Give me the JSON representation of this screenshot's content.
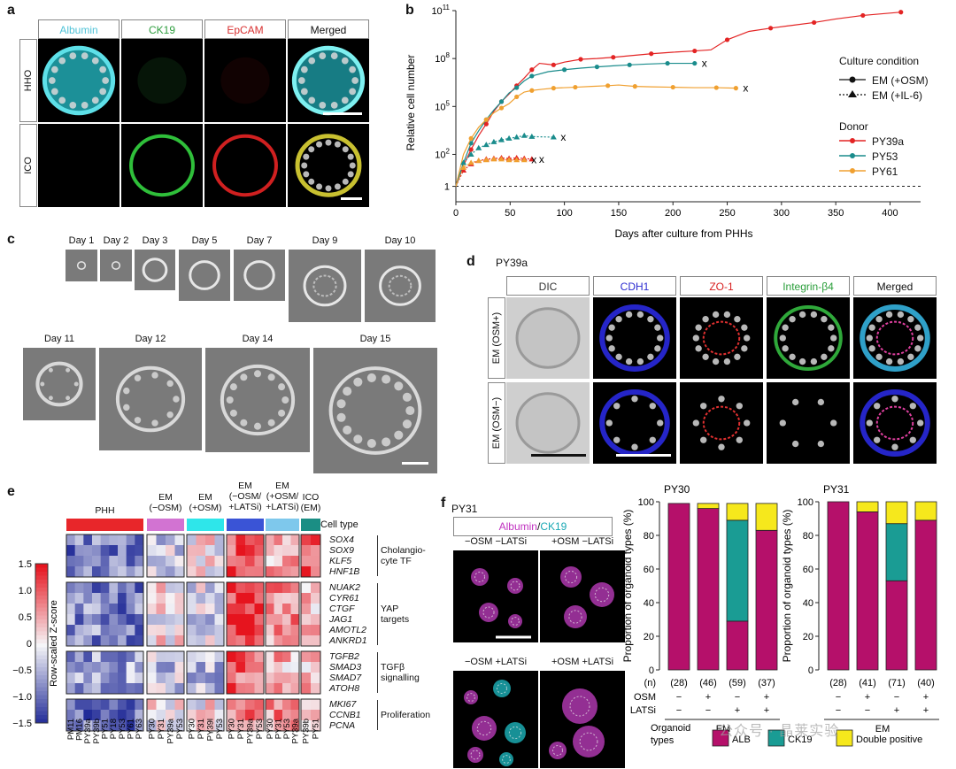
{
  "panels": {
    "a": "a",
    "b": "b",
    "c": "c",
    "d": "d",
    "e": "e",
    "f": "f"
  },
  "panel_a": {
    "columns": [
      "Albumin",
      "CK19",
      "EpCAM",
      "Merged"
    ],
    "column_colors": [
      "#4fc3d8",
      "#2e9e3e",
      "#d83030",
      "#111111"
    ],
    "rows": [
      "HHO",
      "ICO"
    ]
  },
  "panel_b": {
    "ylabel": "Relative cell number",
    "xlabel": "Days after culture from PHHs",
    "legend_condition_title": "Culture condition",
    "legend_conditions": [
      "EM (+OSM)",
      "EM (+IL-6)"
    ],
    "legend_donor_title": "Donor",
    "legend_donors": [
      "PY39a",
      "PY53",
      "PY61"
    ],
    "end_marker": "x"
  },
  "chart_data": {
    "type": "line",
    "title": "",
    "xlabel": "Days after culture from PHHs",
    "ylabel": "Relative cell number",
    "yscale": "log",
    "xlim": [
      0,
      420
    ],
    "ylim": [
      0.3,
      100000000000
    ],
    "xticks": [
      0,
      50,
      100,
      150,
      200,
      250,
      300,
      350,
      400
    ],
    "yticks": [
      {
        "v": 1,
        "label": "1"
      },
      {
        "v": 100,
        "label": "10^2"
      },
      {
        "v": 100000,
        "label": "10^5"
      },
      {
        "v": 100000000,
        "label": "10^8"
      },
      {
        "v": 100000000000,
        "label": "10^11"
      }
    ],
    "series": [
      {
        "name": "PY39a",
        "condition": "EM (+OSM)",
        "color": "#e32424",
        "x": [
          0,
          7,
          14,
          21,
          28,
          35,
          42,
          49,
          56,
          63,
          70,
          77,
          90,
          100,
          115,
          130,
          145,
          160,
          180,
          200,
          220,
          235,
          250,
          270,
          290,
          310,
          330,
          350,
          375,
          410
        ],
        "y": [
          1,
          20,
          200,
          1500,
          8000,
          50000,
          200000,
          600000,
          2000000,
          6000000,
          20000000,
          50000000,
          40000000,
          60000000,
          90000000,
          100000000,
          120000000,
          150000000,
          200000000,
          250000000,
          300000000,
          350000000,
          1500000000,
          5000000000,
          8000000000,
          12000000000,
          18000000000,
          30000000000,
          50000000000,
          80000000000
        ]
      },
      {
        "name": "PY53",
        "condition": "EM (+OSM)",
        "color": "#1a8c8c",
        "x": [
          0,
          7,
          14,
          21,
          28,
          35,
          42,
          49,
          56,
          63,
          70,
          85,
          100,
          115,
          130,
          145,
          160,
          175,
          195,
          220
        ],
        "y": [
          1,
          30,
          500,
          3000,
          15000,
          60000,
          200000,
          700000,
          1500000,
          4000000,
          8000000,
          15000000,
          20000000,
          25000000,
          30000000,
          35000000,
          40000000,
          45000000,
          50000000,
          50000000
        ]
      },
      {
        "name": "PY61",
        "condition": "EM (+OSM)",
        "color": "#f0a030",
        "x": [
          0,
          7,
          14,
          21,
          28,
          35,
          42,
          49,
          56,
          63,
          70,
          80,
          90,
          100,
          110,
          125,
          140,
          150,
          165,
          180,
          200,
          220,
          240,
          258
        ],
        "y": [
          1,
          100,
          1000,
          5000,
          15000,
          40000,
          80000,
          150000,
          400000,
          800000,
          1000000,
          1200000,
          1400000,
          1500000,
          1600000,
          1800000,
          2000000,
          2200000,
          1800000,
          1700000,
          1600000,
          1500000,
          1500000,
          1400000
        ]
      },
      {
        "name": "PY39a",
        "condition": "EM (+IL-6)",
        "color": "#e32424",
        "x": [
          0,
          7,
          14,
          21,
          28,
          35,
          42,
          49,
          56,
          63,
          70
        ],
        "y": [
          1,
          10,
          25,
          40,
          50,
          55,
          60,
          55,
          60,
          55,
          50
        ]
      },
      {
        "name": "PY53",
        "condition": "EM (+IL-6)",
        "color": "#1a8c8c",
        "x": [
          0,
          7,
          14,
          21,
          28,
          35,
          42,
          49,
          56,
          63,
          70,
          90
        ],
        "y": [
          1,
          30,
          100,
          250,
          400,
          600,
          800,
          1000,
          1200,
          1500,
          1300,
          1200
        ]
      },
      {
        "name": "PY61",
        "condition": "EM (+IL-6)",
        "color": "#f0a030",
        "x": [
          0,
          7,
          14,
          21,
          28,
          35,
          42,
          49,
          56,
          63
        ],
        "y": [
          1,
          15,
          30,
          40,
          45,
          50,
          50,
          45,
          45,
          45
        ]
      }
    ]
  },
  "panel_c": {
    "days_row1": [
      "Day 1",
      "Day 2",
      "Day 3",
      "Day 5",
      "Day 7",
      "Day 9",
      "Day 10"
    ],
    "days_row2": [
      "Day 11",
      "Day 12",
      "Day 14",
      "Day 15"
    ]
  },
  "panel_d": {
    "donor": "PY39a",
    "columns": [
      "DIC",
      "CDH1",
      "ZO-1",
      "Integrin-β4",
      "Merged"
    ],
    "column_colors": [
      "#333333",
      "#2a2ad0",
      "#d82020",
      "#2a9e3a",
      "#111111"
    ],
    "rows": [
      "EM (OSM+)",
      "EM (OSM−)"
    ]
  },
  "panel_e": {
    "groups": [
      "PHH",
      "EM\n(−OSM)",
      "EM\n(+OSM)",
      "EM\n(−OSM/\n+LATSi)",
      "EM\n(+OSM/\n+LATSi)",
      "ICO\n(EM)"
    ],
    "cell_type_label": "Cell type",
    "group_colors": [
      "#e8262a",
      "#d273d2",
      "#2ee6ea",
      "#3a54d6",
      "#7ec8ec",
      "#1b8e84"
    ],
    "colorbar_label": "Row-scaled Z-score",
    "colorbar_ticks": [
      "1.5",
      "1.0",
      "0.5",
      "0",
      "−0.5",
      "−1.0",
      "−1.5"
    ],
    "gene_blocks": [
      {
        "genes": [
          "SOX4",
          "SOX9",
          "KLF5",
          "HNF1B"
        ],
        "label": "Cholangio-\ncyte TF"
      },
      {
        "genes": [
          "NUAK2",
          "CYR61",
          "CTGF",
          "JAG1",
          "AMOTL2",
          "ANKRD1"
        ],
        "label": "YAP\ntargets"
      },
      {
        "genes": [
          "TGFB2",
          "SMAD3",
          "SMAD7",
          "ATOH8"
        ],
        "label": "TGFβ\nsignalling"
      },
      {
        "genes": [
          "MKI67",
          "CCNB1",
          "PCNA"
        ],
        "label": "Proliferation"
      }
    ],
    "samples": [
      "PM11",
      "PM16",
      "PY39a",
      "PY39b",
      "PY51",
      "PY18",
      "PY53",
      "PY61",
      "PY63",
      "PY30",
      "PY31",
      "PY39a",
      "PY53",
      "PY30",
      "PY31",
      "PY39l",
      "PY53",
      "PY30",
      "PY31",
      "PY39a",
      "PY53",
      "PY30",
      "PY31",
      "PY53",
      "PY39a",
      "PY39b",
      "PY51"
    ]
  },
  "panel_f": {
    "donor": "PY31",
    "title_albumin": "Albumin",
    "title_ck19": "CK19",
    "title_sep": "/",
    "conditions": [
      "−OSM −LATSi",
      "+OSM −LATSi",
      "−OSM +LATSi",
      "+OSM +LATSi"
    ]
  },
  "bar_charts": [
    {
      "title": "PY30",
      "n": [
        "(28)",
        "(46)",
        "(59)",
        "(37)"
      ],
      "ALB": [
        99,
        96,
        29,
        83
      ],
      "CK19": [
        0,
        0,
        60,
        0
      ],
      "DP": [
        0,
        3,
        10,
        16
      ]
    },
    {
      "title": "PY31",
      "n": [
        "(28)",
        "(41)",
        "(71)",
        "(40)"
      ],
      "ALB": [
        100,
        94,
        53,
        89
      ],
      "CK19": [
        0,
        0,
        34,
        0
      ],
      "DP": [
        0,
        6,
        13,
        11
      ]
    }
  ],
  "bar_common": {
    "ylabel": "Proportion of organoid types (%)",
    "yticks": [
      "0",
      "20",
      "40",
      "60",
      "80",
      "100"
    ],
    "n_label": "(n)",
    "osm_label": "OSM",
    "latsi_label": "LATSi",
    "osm_signs": [
      "−",
      "+",
      "−",
      "+"
    ],
    "latsi_signs": [
      "−",
      "−",
      "+",
      "+"
    ],
    "em_label": "EM",
    "legend_title": "Organoid\ntypes",
    "legend": [
      {
        "label": "ALB",
        "color": "#b5106a"
      },
      {
        "label": "CK19",
        "color": "#1a9c94"
      },
      {
        "label": "Double positive",
        "color": "#f6e81c"
      }
    ]
  },
  "watermark": "公众号 · 晶莱实验"
}
